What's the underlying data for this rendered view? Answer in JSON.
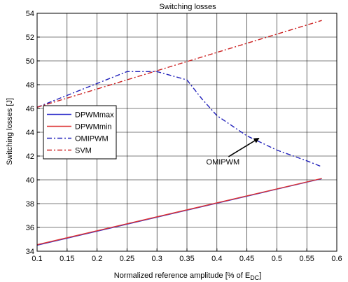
{
  "chart_data": {
    "type": "line",
    "title": "Switching losses",
    "xlabel": "Normalized reference amplitude [% of E",
    "xlabel_sub": "DC",
    "xlabel_suffix": "]",
    "ylabel": "Switching losses [J]",
    "xlim": [
      0.1,
      0.6
    ],
    "ylim": [
      34,
      54
    ],
    "xticks": [
      0.1,
      0.15,
      0.2,
      0.25,
      0.3,
      0.35,
      0.4,
      0.45,
      0.5,
      0.55,
      0.6
    ],
    "xtick_labels": [
      "0.1",
      "0.15",
      "0.2",
      "0.25",
      "0.3",
      "0.35",
      "0.4",
      "0.45",
      "0.5",
      "0.55",
      "0.6"
    ],
    "yticks": [
      34,
      36,
      38,
      40,
      42,
      44,
      46,
      48,
      50,
      52,
      54
    ],
    "ytick_labels": [
      "34",
      "36",
      "38",
      "40",
      "42",
      "44",
      "46",
      "48",
      "50",
      "52",
      "54"
    ],
    "grid": true,
    "legend_position": "middle-left",
    "series": [
      {
        "name": "DPWMmax",
        "color": "#3333cc",
        "style": "solid",
        "x": [
          0.1,
          0.575
        ],
        "y": [
          34.5,
          40.1
        ]
      },
      {
        "name": "DPWMmin",
        "color": "#dd3333",
        "style": "solid",
        "x": [
          0.1,
          0.575
        ],
        "y": [
          34.55,
          40.12
        ]
      },
      {
        "name": "OMIPWM",
        "color": "#2222bb",
        "style": "dashdot",
        "x": [
          0.1,
          0.15,
          0.2,
          0.25,
          0.3,
          0.35,
          0.375,
          0.4,
          0.45,
          0.5,
          0.55,
          0.575
        ],
        "y": [
          46.1,
          47.1,
          48.1,
          49.1,
          49.1,
          48.4,
          46.8,
          45.4,
          43.7,
          42.5,
          41.6,
          41.1
        ]
      },
      {
        "name": "SVM",
        "color": "#cc2222",
        "style": "dashdot",
        "x": [
          0.1,
          0.575
        ],
        "y": [
          46.1,
          53.4
        ]
      }
    ],
    "annotations": [
      {
        "text": "OMIPWM",
        "x": 0.41,
        "y": 41.3,
        "arrow_to": [
          0.47,
          43.5
        ]
      }
    ]
  }
}
